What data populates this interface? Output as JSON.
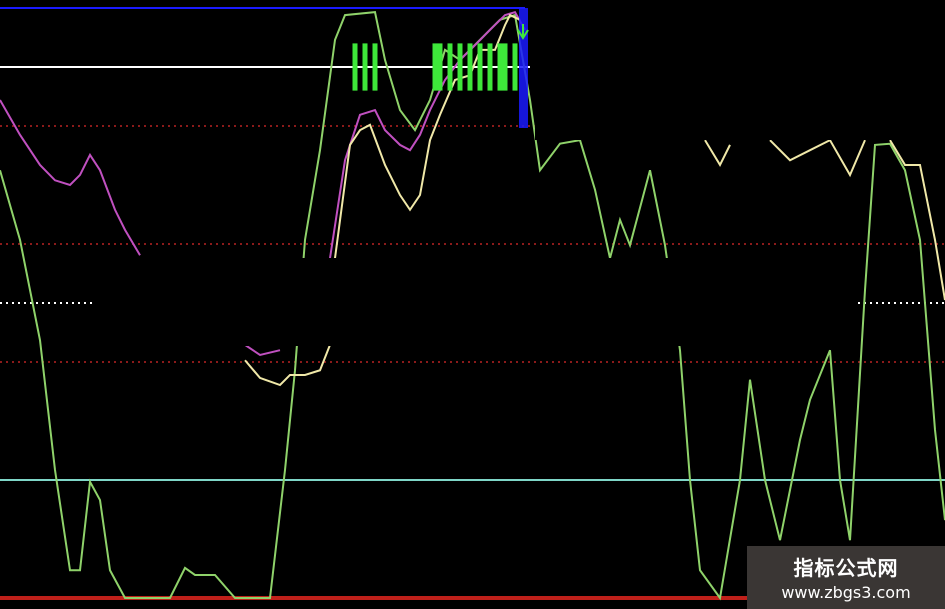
{
  "chart_data": {
    "type": "line",
    "xlim": [
      0,
      189
    ],
    "ylim": [
      0,
      100
    ],
    "grid": false,
    "reference_lines": [
      {
        "value": 100,
        "color": "#1a1aff",
        "style": "solid",
        "x_end": 105
      },
      {
        "value": 90,
        "color": "#ffffff",
        "style": "solid",
        "x_end": 106
      },
      {
        "value": 80,
        "color": "#8b1a1a",
        "style": "dotted"
      },
      {
        "value": 60,
        "color": "#8b1a1a",
        "style": "dotted"
      },
      {
        "value": 50,
        "color": "#ffffff",
        "style": "dotted"
      },
      {
        "value": 40,
        "color": "#8b1a1a",
        "style": "dotted"
      },
      {
        "value": 20,
        "color": "#7fd6c8",
        "style": "solid"
      },
      {
        "value": 0,
        "color": "#c0201a",
        "style": "solid"
      }
    ],
    "series": [
      {
        "color": "#8fd26a",
        "points": [
          [
            0,
            72.5
          ],
          [
            4,
            60.7
          ],
          [
            8,
            43.7
          ],
          [
            11,
            21.7
          ],
          [
            14,
            4.7
          ],
          [
            16,
            4.7
          ],
          [
            18,
            19.7
          ],
          [
            20,
            16.6
          ],
          [
            22,
            4.7
          ],
          [
            25,
            0
          ],
          [
            34,
            0
          ],
          [
            37,
            5.1
          ],
          [
            39,
            3.9
          ],
          [
            43,
            3.9
          ],
          [
            47,
            0
          ],
          [
            54,
            0
          ],
          [
            57,
            21.7
          ],
          [
            59,
            38.6
          ],
          [
            61,
            60.7
          ],
          [
            64,
            75.9
          ],
          [
            67,
            94.6
          ],
          [
            69,
            98.8
          ],
          [
            75,
            99.3
          ],
          [
            77,
            91.2
          ],
          [
            80,
            82.7
          ],
          [
            83,
            79.3
          ],
          [
            86,
            84.4
          ],
          [
            89,
            92.9
          ],
          [
            92,
            91.2
          ],
          [
            96,
            94.6
          ],
          [
            100,
            98
          ],
          [
            103,
            98.8
          ],
          [
            106,
            84.4
          ],
          [
            108,
            72.5
          ],
          [
            112,
            77
          ],
          [
            116,
            77.6
          ],
          [
            119,
            69.2
          ],
          [
            122,
            57.6
          ],
          [
            124,
            64.1
          ],
          [
            126,
            59.8
          ],
          [
            130,
            72.5
          ],
          [
            133,
            59.8
          ],
          [
            136,
            42
          ],
          [
            138,
            20
          ],
          [
            140,
            4.7
          ],
          [
            144,
            0
          ],
          [
            148,
            20
          ],
          [
            150,
            37
          ],
          [
            153,
            20
          ],
          [
            156,
            9.8
          ],
          [
            160,
            26.8
          ],
          [
            162,
            33.6
          ],
          [
            166,
            42
          ],
          [
            168,
            20
          ],
          [
            170,
            9.8
          ],
          [
            173,
            52.2
          ],
          [
            175,
            76.8
          ],
          [
            178,
            77
          ],
          [
            181,
            72.5
          ],
          [
            184,
            60.7
          ],
          [
            187,
            28.5
          ],
          [
            189,
            13.2
          ]
        ]
      },
      {
        "color": "#c050c0",
        "points": [
          [
            0,
            84.4
          ],
          [
            4,
            78.5
          ],
          [
            8,
            73.4
          ],
          [
            11,
            70.8
          ],
          [
            14,
            70
          ],
          [
            16,
            71.7
          ],
          [
            18,
            75.1
          ],
          [
            20,
            72.5
          ],
          [
            23,
            65.8
          ],
          [
            25,
            62.4
          ],
          [
            28,
            58.1
          ],
          null,
          [
            49,
            42.9
          ],
          [
            52,
            41.2
          ],
          [
            56,
            42
          ],
          null,
          [
            66,
            57.6
          ],
          [
            69,
            74.2
          ],
          [
            72,
            81.9
          ],
          [
            75,
            82.7
          ],
          [
            77,
            79.3
          ],
          [
            80,
            76.8
          ],
          [
            82,
            75.9
          ],
          [
            84,
            78.5
          ],
          [
            86,
            82.7
          ],
          [
            89,
            87.8
          ],
          [
            92,
            91.2
          ],
          [
            95,
            93.7
          ],
          [
            98,
            96.3
          ],
          [
            101,
            98.8
          ],
          [
            103,
            99.3
          ],
          [
            105,
            96.3
          ]
        ]
      },
      {
        "color": "#f0e8a8",
        "points": [
          [
            49,
            40.3
          ],
          [
            52,
            37.3
          ],
          [
            56,
            36.1
          ],
          [
            58,
            37.8
          ],
          [
            61,
            37.8
          ],
          [
            64,
            38.6
          ],
          [
            66,
            42.9
          ],
          null,
          [
            67,
            57.6
          ],
          [
            70,
            76.8
          ],
          [
            72,
            79.3
          ],
          [
            74,
            80.2
          ],
          [
            77,
            73.4
          ],
          [
            80,
            68.3
          ],
          [
            82,
            65.8
          ],
          [
            84,
            68.3
          ],
          [
            86,
            77.6
          ],
          [
            88,
            81.9
          ],
          [
            91,
            87.8
          ],
          [
            94,
            88.6
          ],
          [
            96,
            92.9
          ],
          [
            99,
            92.9
          ],
          [
            101,
            97.1
          ],
          [
            102,
            98.8
          ],
          [
            104,
            98
          ],
          null,
          [
            141,
            77.6
          ],
          [
            144,
            73.4
          ],
          [
            146,
            76.8
          ],
          null,
          [
            154,
            77.6
          ],
          [
            158,
            74.2
          ],
          [
            162,
            75.9
          ],
          [
            166,
            77.6
          ],
          [
            170,
            71.7
          ],
          [
            173,
            77.6
          ],
          null,
          [
            178,
            77.6
          ],
          [
            181,
            73.4
          ],
          [
            184,
            73.4
          ],
          [
            187,
            60.7
          ],
          [
            189,
            50.5
          ]
        ]
      }
    ],
    "signal_bars": {
      "color": "#3ee83a",
      "x": [
        71,
        73,
        75,
        87,
        88,
        90,
        92,
        94,
        96,
        98,
        100,
        101,
        103
      ],
      "range": [
        86,
        94
      ]
    },
    "marker": {
      "x": 105,
      "color": "#1a1aff"
    }
  },
  "watermark": {
    "title": "指标公式网",
    "url": "www.zbgs3.com"
  }
}
